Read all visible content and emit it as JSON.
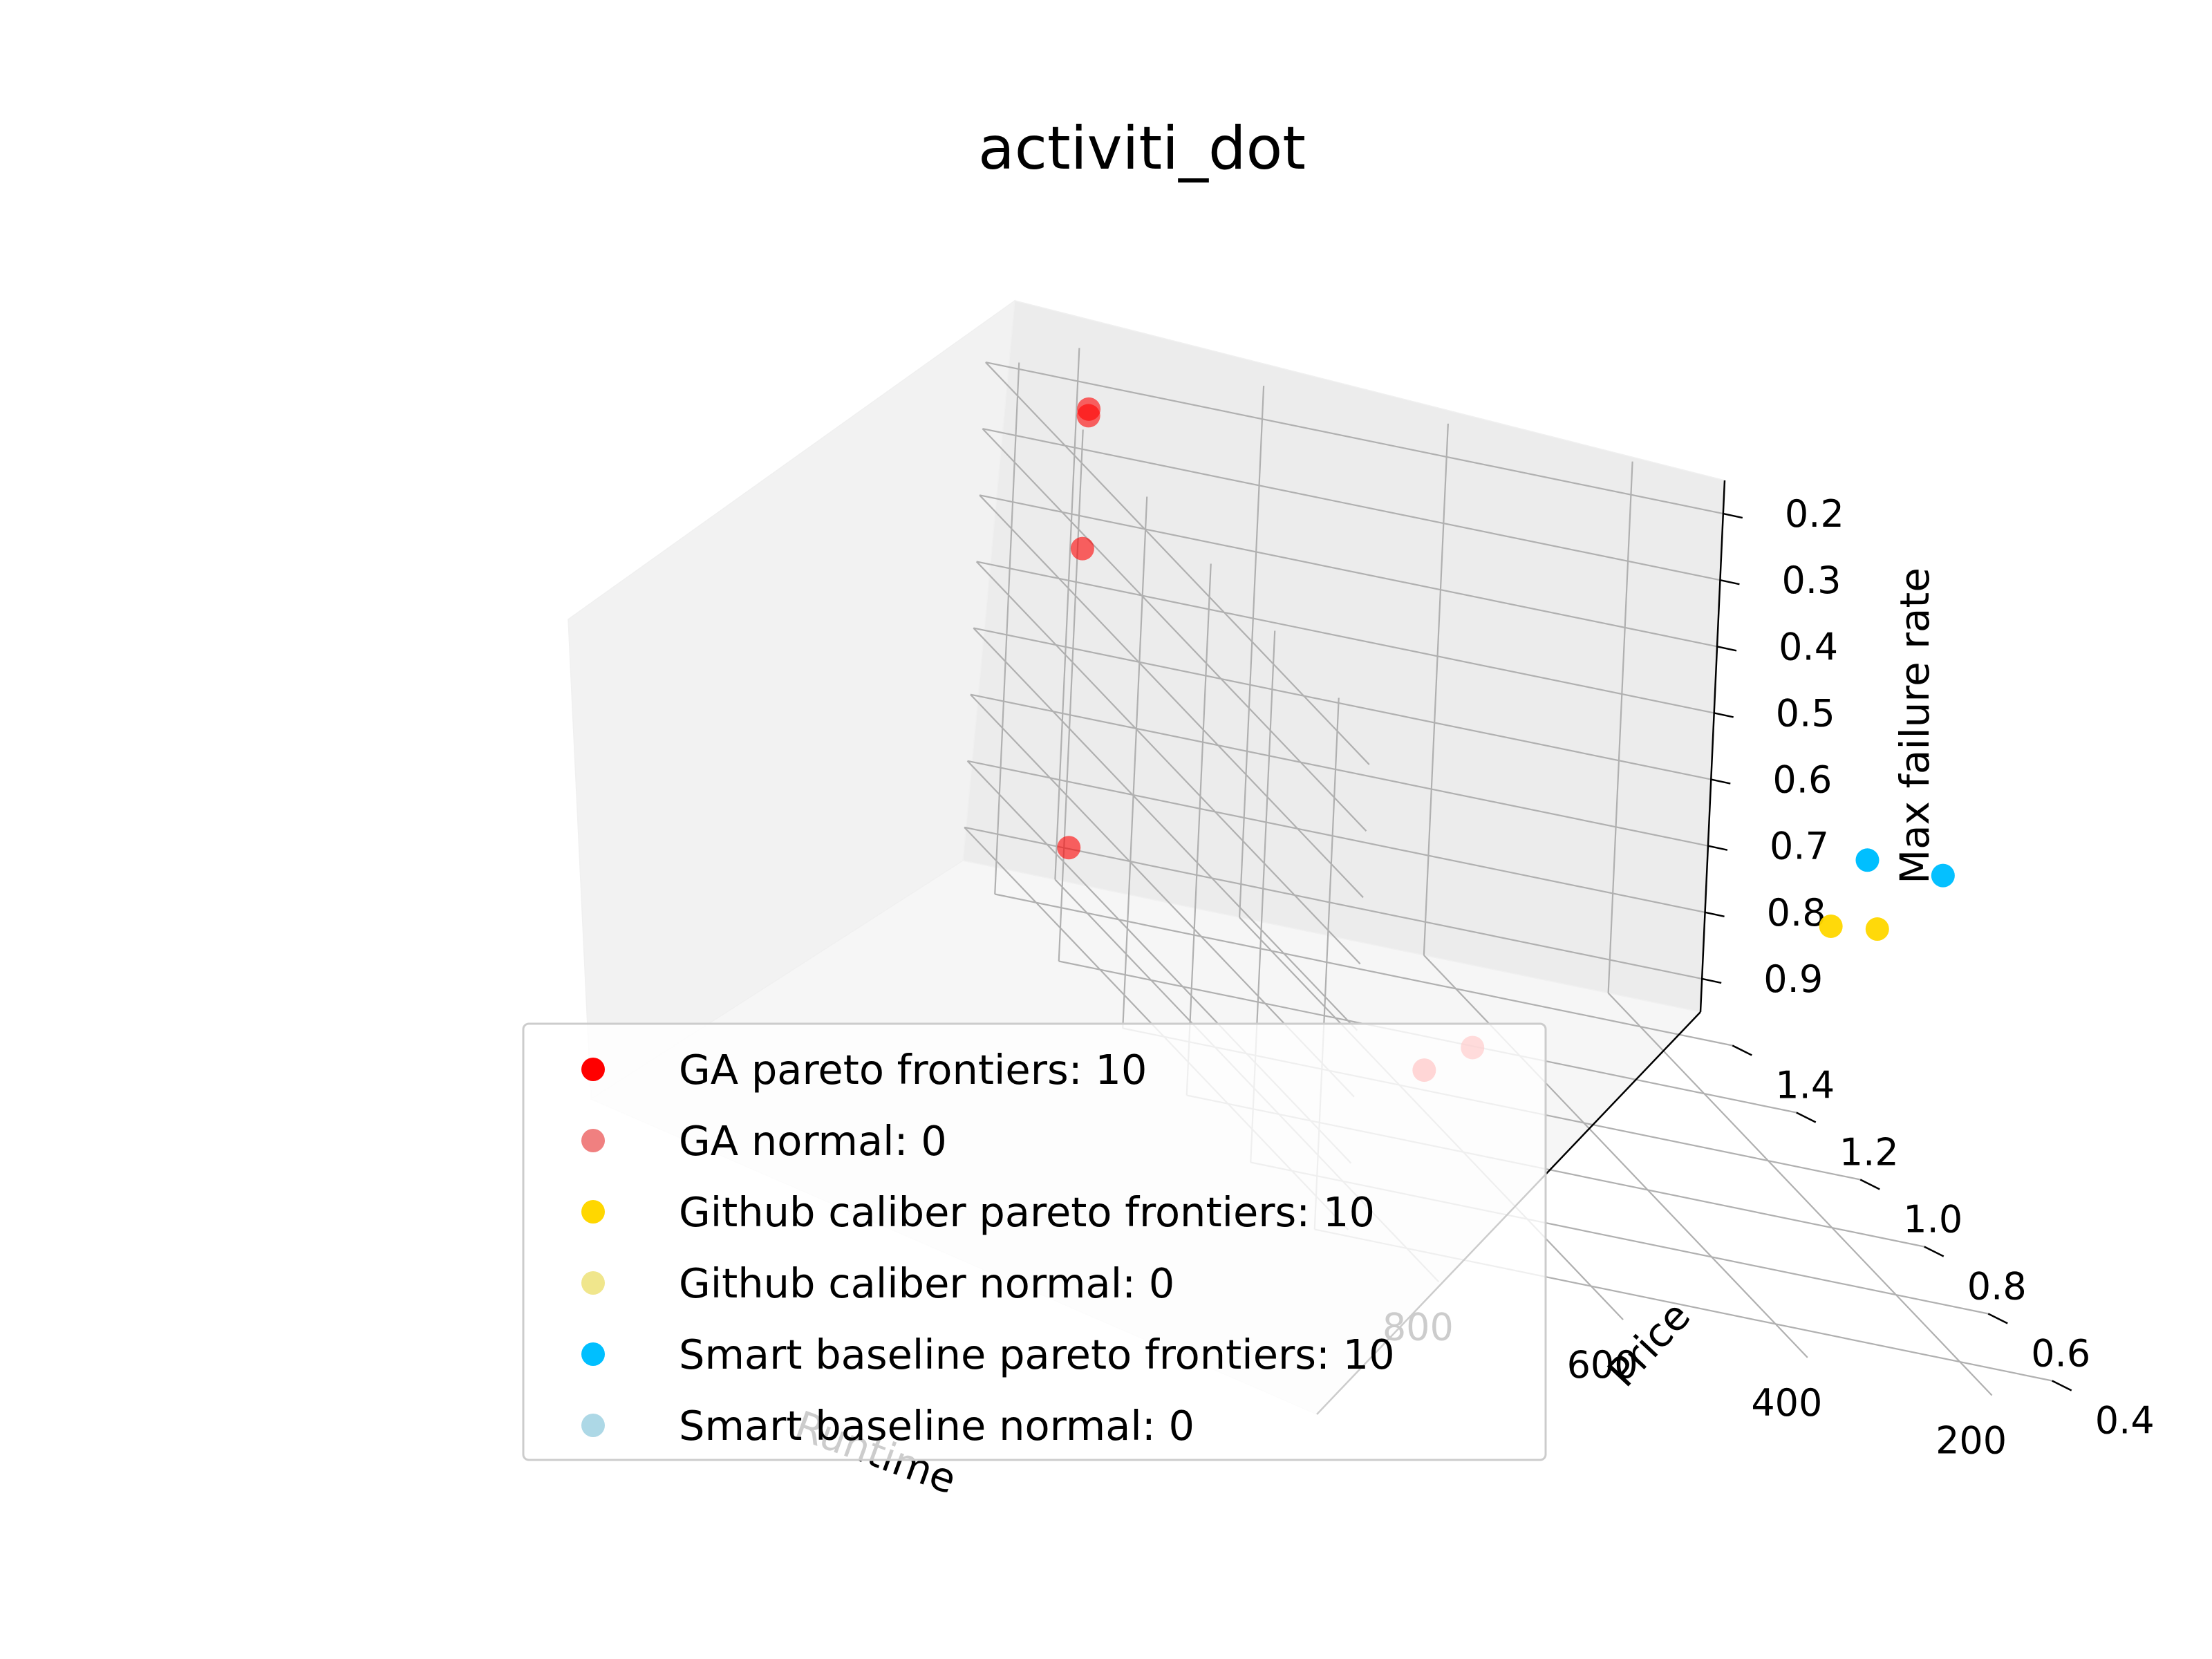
{
  "chart_data": {
    "type": "scatter",
    "projection": "3d",
    "title": "activiti_dot",
    "xlabel": "Runtime",
    "ylabel": "Price",
    "zlabel": "Max failure rate",
    "xlim": [
      100,
      900
    ],
    "ylim": [
      0.3,
      1.5
    ],
    "zlim": [
      0.95,
      0.15
    ],
    "x_ticks": [
      "200",
      "400",
      "600",
      "800"
    ],
    "y_ticks": [
      "0.4",
      "0.6",
      "0.8",
      "1.0",
      "1.2",
      "1.4"
    ],
    "z_ticks": [
      "0.2",
      "0.3",
      "0.4",
      "0.5",
      "0.6",
      "0.7",
      "0.8",
      "0.9"
    ],
    "grid": true,
    "legend_position": "lower-left",
    "series": [
      {
        "name": "GA pareto frontiers: 10",
        "color": "#ff0000",
        "points": [
          {
            "x": 830,
            "y": 1.38,
            "z": 0.19
          },
          {
            "x": 830,
            "y": 1.38,
            "z": 0.2
          },
          {
            "x": 830,
            "y": 1.38,
            "z": 0.4
          },
          {
            "x": 830,
            "y": 1.38,
            "z": 0.85
          },
          {
            "x": 610,
            "y": 0.9,
            "z": 0.88
          },
          {
            "x": 480,
            "y": 1.12,
            "z": 0.92
          }
        ]
      },
      {
        "name": "GA normal: 0",
        "color": "#f08080",
        "points": []
      },
      {
        "name": "Github caliber pareto frontiers: 10",
        "color": "#ffd700",
        "points": [
          {
            "x": 360,
            "y": 0.4,
            "z": 0.34
          },
          {
            "x": 310,
            "y": 0.4,
            "z": 0.33
          }
        ]
      },
      {
        "name": "Github caliber normal: 0",
        "color": "#f0e68c",
        "points": []
      },
      {
        "name": "Smart baseline pareto frontiers: 10",
        "color": "#00bfff",
        "points": [
          {
            "x": 360,
            "y": 0.3,
            "z": 0.19
          },
          {
            "x": 260,
            "y": 0.35,
            "z": 0.21
          }
        ]
      },
      {
        "name": "Smart baseline normal: 0",
        "color": "#add8e6",
        "points": []
      }
    ]
  }
}
